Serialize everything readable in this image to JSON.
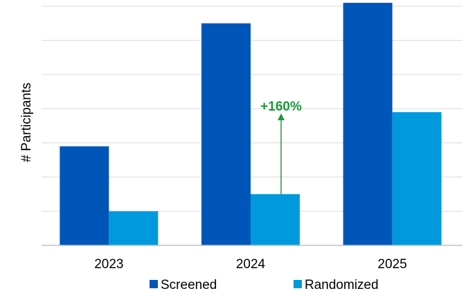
{
  "chart_data": {
    "type": "bar",
    "title": "",
    "xlabel": "",
    "ylabel": "# Participants",
    "categories": [
      "2023",
      "2024",
      "2025"
    ],
    "series": [
      {
        "name": "Screened",
        "values": [
          145,
          325,
          355
        ]
      },
      {
        "name": "Randomized",
        "values": [
          50,
          75,
          195
        ]
      }
    ],
    "ylim": [
      0,
      350
    ],
    "y_ticks": [
      0,
      50,
      100,
      150,
      200,
      250,
      300,
      350
    ],
    "y_tick_labels_shown": false,
    "grid": true,
    "legend_position": "bottom",
    "annotation": {
      "text": "+160%",
      "category": "2024",
      "series": "Randomized",
      "color": "#1a9a3c"
    },
    "colors": {
      "Screened": "#0055b8",
      "Randomized": "#0099dd",
      "grid": "#d9d9d9",
      "axis": "#bfbfbf"
    }
  }
}
